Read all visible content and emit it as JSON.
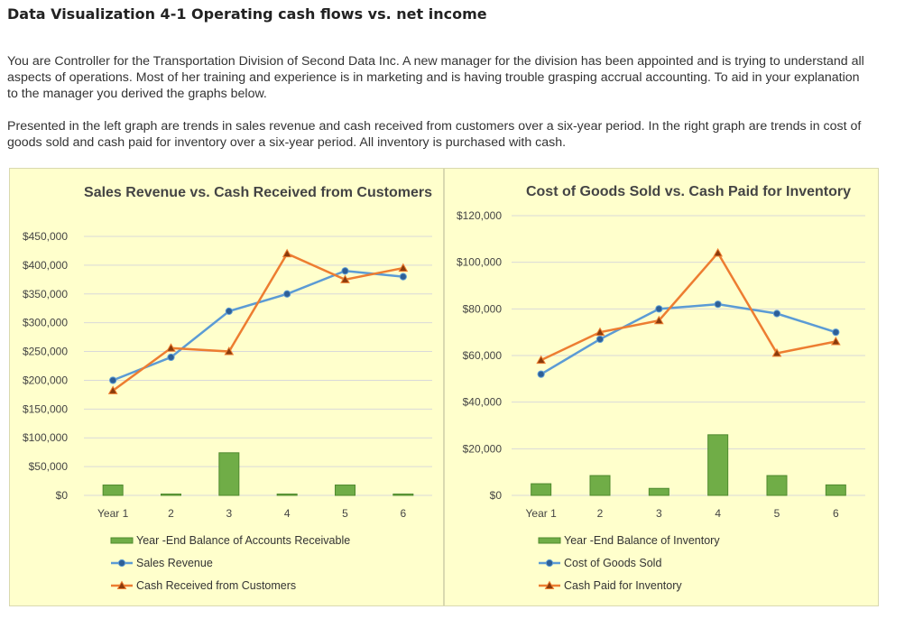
{
  "page": {
    "title": "Data Visualization 4-1 Operating cash flows vs. net income",
    "paragraph1": "You are Controller for the Transportation Division of Second Data Inc. A new manager for the division has been appointed and is trying to understand all aspects of operations. Most of her training and experience is in marketing and is having trouble grasping accrual accounting. To aid in your explanation to the manager you derived the graphs below.",
    "paragraph2": "Presented in the left graph are trends in sales revenue and cash received from customers over a six-year period. In the right graph are trends in cost of goods sold and cash paid for inventory over a six-year period. All inventory is purchased with cash."
  },
  "colors": {
    "chart_background": "#ffffcc",
    "bar": "#70ad47",
    "line_blue": "#5b9bd5",
    "line_orange": "#ed7d31"
  },
  "chart_data": [
    {
      "type": "bar+line",
      "title": "Sales Revenue vs. Cash Received from Customers",
      "categories": [
        "Year 1",
        "2",
        "3",
        "4",
        "5",
        "6"
      ],
      "ylim": [
        0,
        450000
      ],
      "ytick_labels": [
        "$0",
        "$50,000",
        "$100,000",
        "$150,000",
        "$200,000",
        "$250,000",
        "$300,000",
        "$350,000",
        "$400,000",
        "$450,000"
      ],
      "grid": true,
      "legend_position": "bottom",
      "series": [
        {
          "name": "Year -End Balance of Accounts Receivable",
          "kind": "bar",
          "marker": "none",
          "values": [
            18000,
            2000,
            74000,
            2000,
            18000,
            2000
          ]
        },
        {
          "name": "Sales Revenue",
          "kind": "line",
          "marker": "circle",
          "values": [
            200000,
            240000,
            320000,
            350000,
            390000,
            380000
          ]
        },
        {
          "name": "Cash Received from Customers",
          "kind": "line",
          "marker": "triangle",
          "values": [
            182000,
            256000,
            250000,
            420000,
            375000,
            395000
          ]
        }
      ]
    },
    {
      "type": "bar+line",
      "title": "Cost of Goods Sold vs. Cash Paid for Inventory",
      "categories": [
        "Year 1",
        "2",
        "3",
        "4",
        "5",
        "6"
      ],
      "ylim": [
        0,
        120000
      ],
      "ytick_labels": [
        "$0",
        "$20,000",
        "$40,000",
        "$60,000",
        "$80,000",
        "$100,000",
        "$120,000"
      ],
      "grid": true,
      "legend_position": "bottom",
      "series": [
        {
          "name": "Year -End Balance of Inventory",
          "kind": "bar",
          "marker": "none",
          "values": [
            5000,
            8500,
            3000,
            26000,
            8500,
            4500
          ]
        },
        {
          "name": "Cost of Goods Sold",
          "kind": "line",
          "marker": "circle",
          "values": [
            52000,
            67000,
            80000,
            82000,
            78000,
            70000
          ]
        },
        {
          "name": "Cash Paid for Inventory",
          "kind": "line",
          "marker": "triangle",
          "values": [
            58000,
            70000,
            75000,
            104000,
            61000,
            66000
          ]
        }
      ]
    }
  ]
}
